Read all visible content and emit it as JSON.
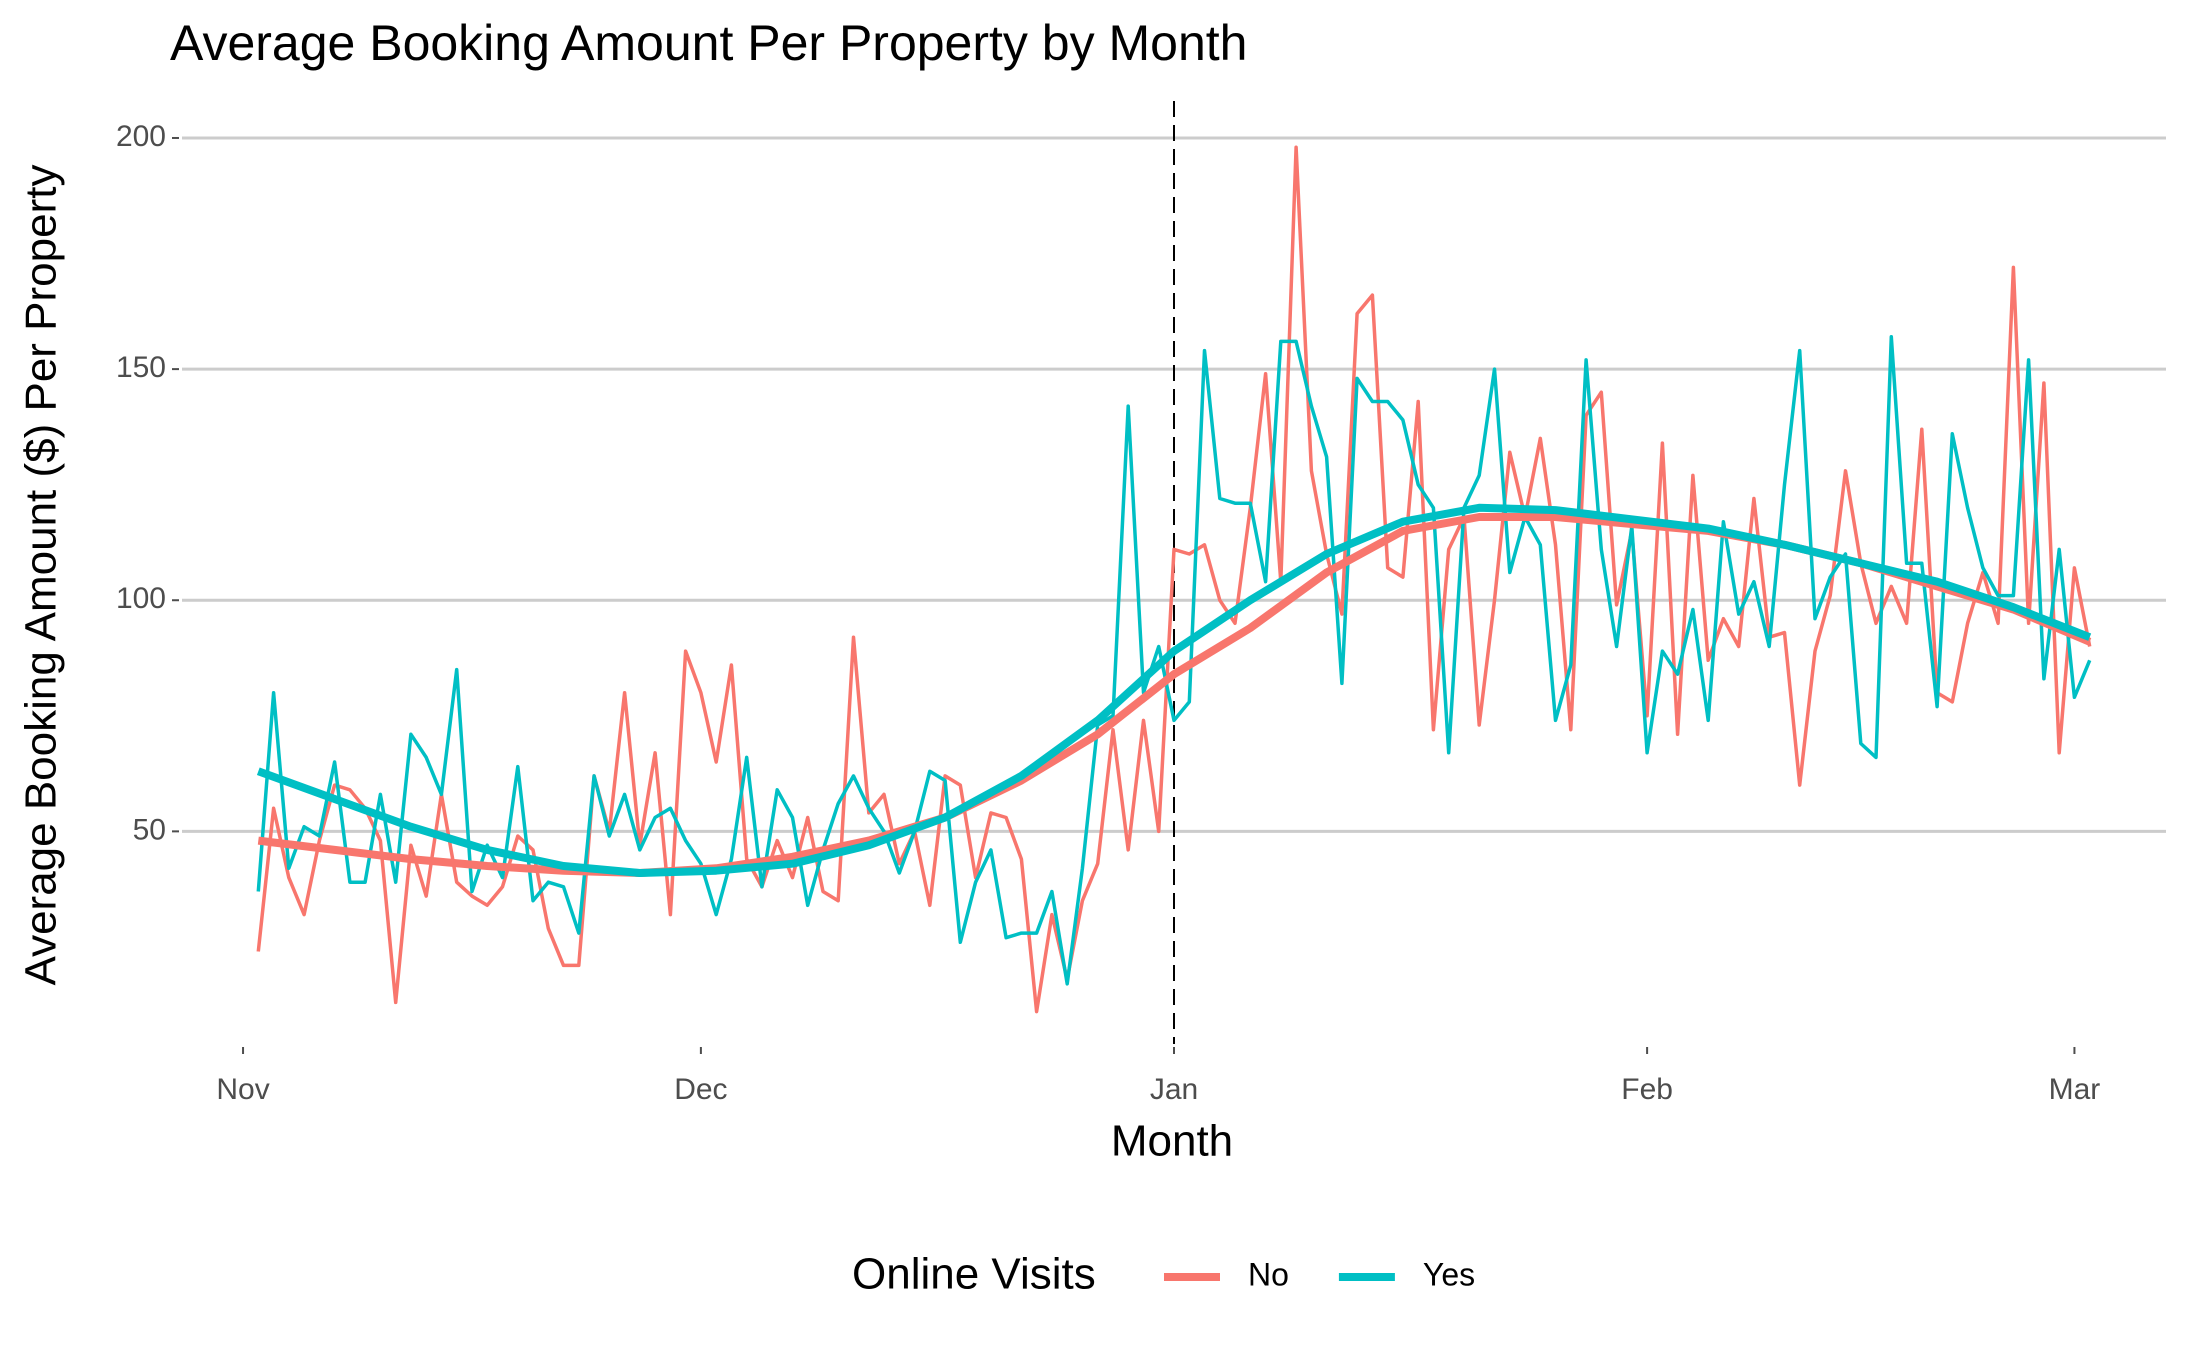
{
  "chart_data": {
    "type": "line",
    "title": "Average Booking Amount Per Property by Month",
    "x_label": "Month",
    "y_label": "Average Booking Amount ($) Per Property",
    "legend_title": "Online Visits",
    "legend": "bottom",
    "grid": true,
    "vline_x": 61,
    "vline_style": "dashed",
    "xlim": [
      -4,
      126
    ],
    "xticks": [
      {
        "value": 0,
        "label": "Nov"
      },
      {
        "value": 30,
        "label": "Dec"
      },
      {
        "value": 61,
        "label": "Jan"
      },
      {
        "value": 92,
        "label": "Feb"
      },
      {
        "value": 120,
        "label": "Mar"
      }
    ],
    "ylim": [
      4,
      208
    ],
    "yticks": [
      50,
      100,
      150,
      200
    ],
    "x": [
      1,
      2,
      3,
      4,
      5,
      6,
      7,
      8,
      9,
      10,
      11,
      12,
      13,
      14,
      15,
      16,
      17,
      18,
      19,
      20,
      21,
      22,
      23,
      24,
      25,
      26,
      27,
      28,
      29,
      30,
      31,
      32,
      33,
      34,
      35,
      36,
      37,
      38,
      39,
      40,
      41,
      42,
      43,
      44,
      45,
      46,
      47,
      48,
      49,
      50,
      51,
      52,
      53,
      54,
      55,
      56,
      57,
      58,
      59,
      60,
      61,
      62,
      63,
      64,
      65,
      66,
      67,
      68,
      69,
      70,
      71,
      72,
      73,
      74,
      75,
      76,
      77,
      78,
      79,
      80,
      81,
      82,
      83,
      84,
      85,
      86,
      87,
      88,
      89,
      90,
      91,
      92,
      93,
      94,
      95,
      96,
      97,
      98,
      99,
      100,
      101,
      102,
      103,
      104,
      105,
      106,
      107,
      108,
      109,
      110,
      111,
      112,
      113,
      114,
      115,
      116,
      117,
      118,
      119,
      120,
      121
    ],
    "series": [
      {
        "name": "No",
        "color": "#F8766D",
        "values": [
          24,
          55,
          40,
          32,
          48,
          60,
          59,
          55,
          48,
          13,
          47,
          36,
          58,
          39,
          36,
          34,
          38,
          49,
          46,
          29,
          21,
          21,
          62,
          50,
          80,
          47,
          67,
          32,
          89,
          80,
          65,
          86,
          44,
          38,
          48,
          40,
          53,
          37,
          35,
          92,
          54,
          58,
          43,
          50,
          34,
          62,
          60,
          40,
          54,
          53,
          44,
          11,
          32,
          18,
          35,
          43,
          72,
          46,
          74,
          50,
          111,
          110,
          112,
          100,
          95,
          120,
          149,
          104,
          198,
          128,
          110,
          97,
          162,
          166,
          107,
          105,
          143,
          72,
          111,
          118,
          73,
          100,
          132,
          118,
          135,
          112,
          72,
          140,
          145,
          99,
          115,
          75,
          134,
          71,
          127,
          87,
          96,
          90,
          122,
          92,
          93,
          60,
          89,
          101,
          128,
          108,
          95,
          103,
          95,
          137,
          80,
          78,
          95,
          106,
          95,
          172,
          95,
          147,
          67,
          107,
          90
        ]
      },
      {
        "name": "Yes",
        "color": "#00BFC4",
        "values": [
          37,
          80,
          42,
          51,
          49,
          65,
          39,
          39,
          58,
          39,
          71,
          66,
          58,
          85,
          37,
          47,
          40,
          64,
          35,
          39,
          38,
          28,
          62,
          49,
          58,
          46,
          53,
          55,
          48,
          43,
          32,
          44,
          66,
          38,
          59,
          53,
          34,
          46,
          56,
          62,
          55,
          50,
          41,
          50,
          63,
          61,
          26,
          39,
          46,
          27,
          28,
          28,
          37,
          17,
          42,
          73,
          75,
          142,
          80,
          90,
          74,
          78,
          154,
          122,
          121,
          121,
          104,
          156,
          156,
          142,
          131,
          82,
          148,
          143,
          143,
          139,
          125,
          120,
          67,
          120,
          127,
          150,
          106,
          118,
          112,
          74,
          86,
          152,
          111,
          90,
          116,
          67,
          89,
          84,
          98,
          74,
          117,
          97,
          104,
          90,
          125,
          154,
          96,
          105,
          110,
          69,
          66,
          157,
          108,
          108,
          77,
          136,
          120,
          107,
          101,
          101,
          152,
          83,
          111,
          79,
          87
        ]
      }
    ],
    "smooth": {
      "x": [
        1,
        6,
        11,
        16,
        21,
        26,
        31,
        36,
        41,
        46,
        51,
        56,
        61,
        66,
        71,
        76,
        81,
        86,
        91,
        96,
        101,
        106,
        111,
        116,
        121
      ],
      "series": [
        {
          "values": [
            48,
            46,
            44,
            42.5,
            41.5,
            41,
            42,
            44.5,
            48,
            53,
            61,
            71,
            84,
            94,
            106,
            115,
            118,
            118,
            116.5,
            115,
            112,
            108,
            103,
            98,
            91
          ]
        },
        {
          "values": [
            63,
            57,
            51,
            46,
            42.5,
            41,
            41.5,
            43,
            47,
            53,
            62,
            74,
            89,
            100,
            110,
            117,
            120,
            119.5,
            117.5,
            115.5,
            112,
            108,
            104,
            98.5,
            92
          ]
        }
      ]
    }
  }
}
